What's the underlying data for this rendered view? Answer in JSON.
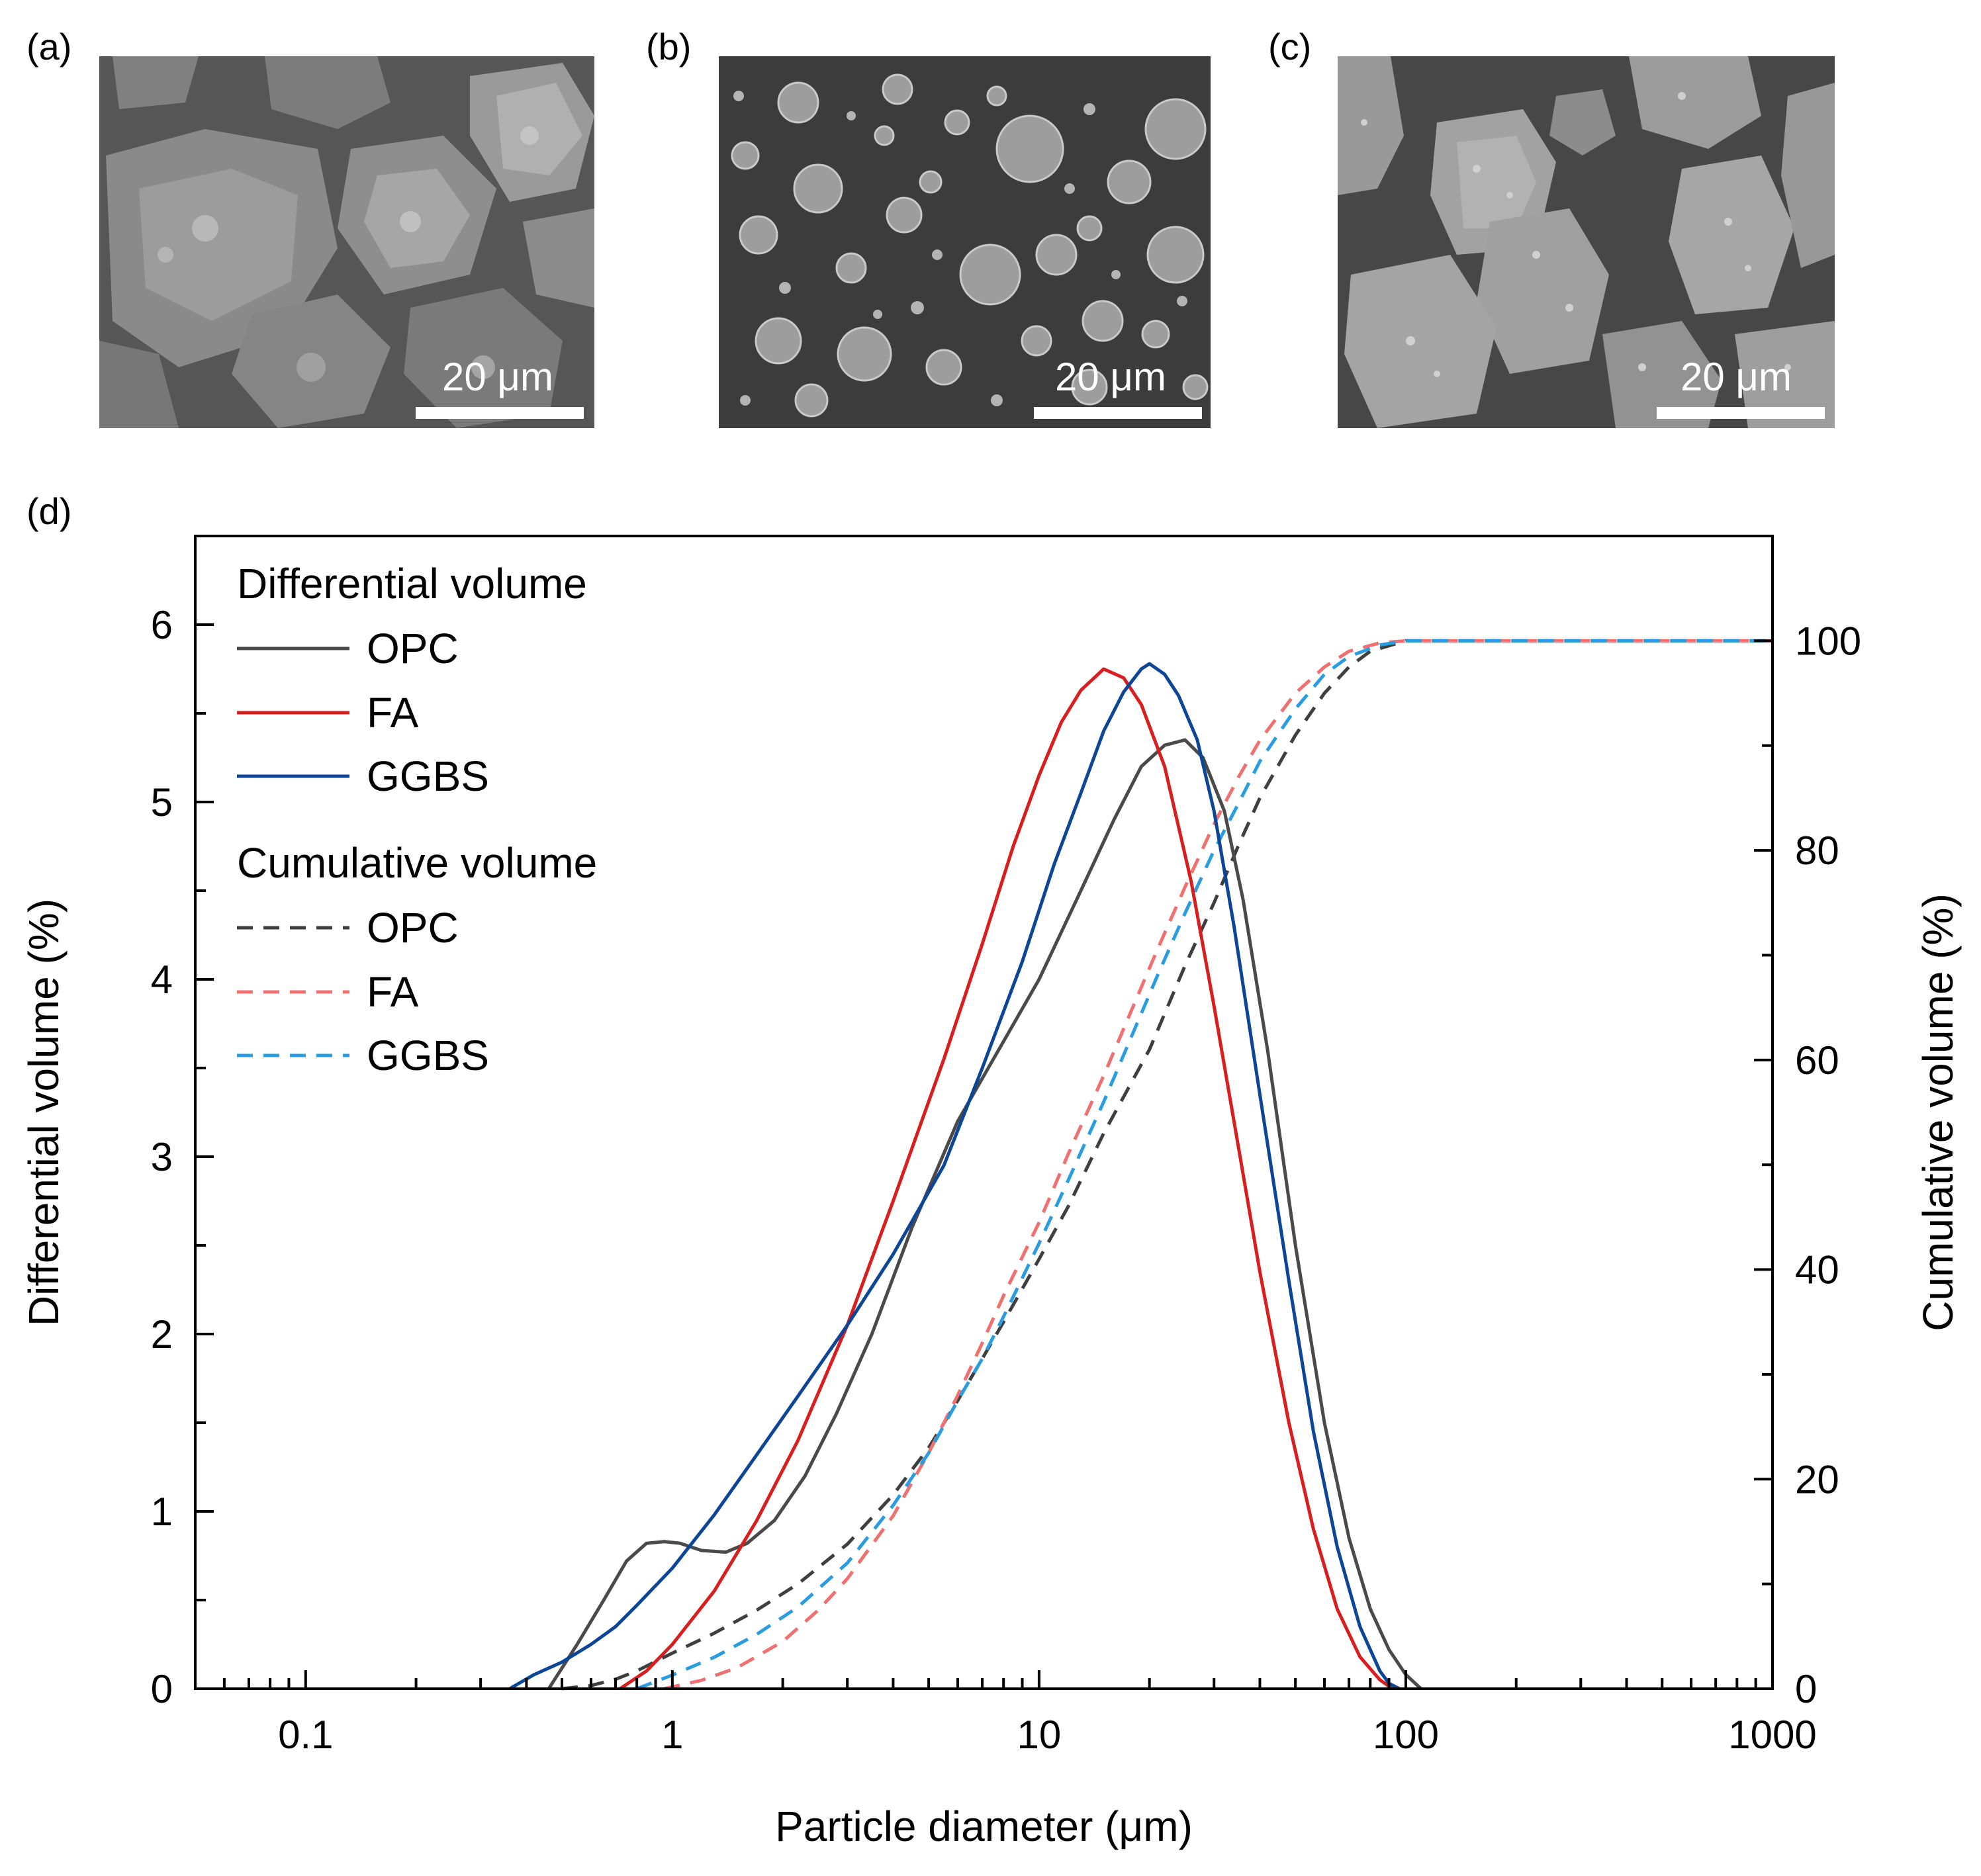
{
  "panels": {
    "a": {
      "label": "(a)",
      "scale_label": "20 μm"
    },
    "b": {
      "label": "(b)",
      "scale_label": "20 μm"
    },
    "c": {
      "label": "(c)",
      "scale_label": "20 μm"
    },
    "d": {
      "label": "(d)"
    }
  },
  "colors": {
    "opc": "#4a4a4a",
    "fa": "#d81e1e",
    "ggbs": "#0d4597",
    "opc_cum": "#3f3f3f",
    "fa_cum": "#f07070",
    "ggbs_cum": "#2a9de0"
  },
  "chart_data": {
    "type": "line",
    "xscale": "log",
    "xlim": [
      0.05,
      1000
    ],
    "ylim_left": [
      0,
      6.5
    ],
    "ylim_right": [
      0,
      110
    ],
    "xlabel": "Particle diameter (μm)",
    "ylabel_left": "Differential volume (%)",
    "ylabel_right": "Cumulative volume (%)",
    "x_ticks": [
      0.1,
      1,
      10,
      100,
      1000
    ],
    "x_tick_labels": [
      "0.1",
      "1",
      "10",
      "100",
      "1000"
    ],
    "y_left_ticks": [
      0,
      1,
      2,
      3,
      4,
      5,
      6
    ],
    "y_left_tick_labels": [
      "0",
      "1",
      "2",
      "3",
      "4",
      "5",
      "6"
    ],
    "y_right_ticks": [
      0,
      20,
      40,
      60,
      80,
      100
    ],
    "y_right_tick_labels": [
      "0",
      "20",
      "40",
      "60",
      "80",
      "100"
    ],
    "legend": {
      "group1_title": "Differential volume",
      "group2_title": "Cumulative volume",
      "entries": [
        "OPC",
        "FA",
        "GGBS",
        "OPC",
        "FA",
        "GGBS"
      ]
    },
    "series": [
      {
        "name": "OPC",
        "group": "differential",
        "axis": "left",
        "style": "solid",
        "x": [
          0.46,
          0.55,
          0.65,
          0.75,
          0.85,
          0.95,
          1.05,
          1.2,
          1.4,
          1.6,
          1.9,
          2.3,
          2.8,
          3.5,
          4.5,
          6,
          8,
          10,
          13,
          16,
          19,
          22,
          25,
          28,
          32,
          36,
          42,
          50,
          60,
          70,
          80,
          90,
          100,
          110
        ],
        "y": [
          0,
          0.25,
          0.5,
          0.72,
          0.82,
          0.83,
          0.82,
          0.78,
          0.77,
          0.82,
          0.95,
          1.2,
          1.55,
          2.0,
          2.6,
          3.2,
          3.65,
          4.0,
          4.5,
          4.9,
          5.2,
          5.32,
          5.35,
          5.25,
          4.95,
          4.45,
          3.6,
          2.5,
          1.5,
          0.85,
          0.45,
          0.22,
          0.08,
          0
        ]
      },
      {
        "name": "FA",
        "group": "differential",
        "axis": "left",
        "style": "solid",
        "x": [
          0.72,
          0.85,
          1,
          1.3,
          1.7,
          2.2,
          3,
          4,
          5.5,
          7,
          8.5,
          10,
          11.5,
          13,
          15,
          17,
          19,
          22,
          26,
          30,
          35,
          40,
          48,
          56,
          65,
          75,
          85,
          92
        ],
        "y": [
          0,
          0.1,
          0.25,
          0.55,
          0.95,
          1.4,
          2.05,
          2.75,
          3.55,
          4.2,
          4.75,
          5.15,
          5.45,
          5.63,
          5.75,
          5.7,
          5.55,
          5.2,
          4.55,
          3.85,
          3.05,
          2.35,
          1.5,
          0.9,
          0.45,
          0.18,
          0.05,
          0
        ]
      },
      {
        "name": "GGBS",
        "group": "differential",
        "axis": "left",
        "style": "solid",
        "x": [
          0.36,
          0.42,
          0.5,
          0.6,
          0.7,
          0.8,
          1,
          1.3,
          1.7,
          2.2,
          3,
          4,
          5.5,
          7,
          9,
          11,
          13,
          15,
          17,
          19,
          20,
          22,
          24,
          27,
          30,
          34,
          40,
          48,
          56,
          65,
          75,
          85,
          90,
          96
        ],
        "y": [
          0,
          0.08,
          0.15,
          0.25,
          0.35,
          0.47,
          0.68,
          0.98,
          1.32,
          1.65,
          2.05,
          2.45,
          2.95,
          3.5,
          4.1,
          4.65,
          5.05,
          5.4,
          5.62,
          5.75,
          5.78,
          5.72,
          5.6,
          5.35,
          4.95,
          4.3,
          3.35,
          2.3,
          1.45,
          0.8,
          0.35,
          0.1,
          0.03,
          0
        ]
      },
      {
        "name": "OPC",
        "group": "cumulative",
        "axis": "right",
        "style": "dashed",
        "x": [
          0.5,
          0.6,
          0.7,
          0.8,
          1,
          1.3,
          1.7,
          2.2,
          3,
          4,
          5,
          6,
          7,
          8,
          10,
          12,
          15,
          20,
          25,
          30,
          35,
          40,
          50,
          60,
          70,
          80,
          100,
          200,
          1000
        ],
        "y": [
          0,
          0.3,
          0.9,
          1.7,
          3.4,
          5.3,
          7.5,
          10,
          13.8,
          18.5,
          23,
          27.5,
          31.5,
          35,
          41,
          46,
          53,
          61,
          69,
          75,
          80.5,
          85,
          91,
          95,
          97.5,
          99,
          100,
          100,
          100
        ]
      },
      {
        "name": "FA",
        "group": "cumulative",
        "axis": "right",
        "style": "dashed",
        "x": [
          0.95,
          1.2,
          1.5,
          2,
          2.5,
          3,
          4,
          5,
          6,
          7,
          8,
          10,
          12,
          15,
          18,
          21,
          25,
          30,
          35,
          40,
          50,
          60,
          70,
          85,
          100,
          200,
          1000
        ],
        "y": [
          0,
          0.8,
          2,
          4.5,
          7.5,
          10.5,
          16.5,
          22.5,
          28,
          33,
          37.5,
          44.5,
          51,
          58.5,
          65,
          70.5,
          76.5,
          82.5,
          87,
          90.5,
          95,
          97.5,
          99,
          99.8,
          100,
          100,
          100
        ]
      },
      {
        "name": "GGBS",
        "group": "cumulative",
        "axis": "right",
        "style": "dashed",
        "x": [
          0.8,
          1,
          1.3,
          1.7,
          2.2,
          3,
          4,
          5,
          6,
          7,
          8,
          10,
          12,
          15,
          18,
          21,
          25,
          30,
          35,
          40,
          50,
          60,
          70,
          85,
          100,
          200,
          1000
        ],
        "y": [
          0,
          1.3,
          3,
          5.2,
          7.8,
          12,
          17.5,
          22.5,
          27.5,
          31.5,
          35.5,
          42.5,
          48.5,
          56,
          62.5,
          68,
          74,
          80,
          84.5,
          88.5,
          93.5,
          96.8,
          98.5,
          99.6,
          100,
          100,
          100
        ]
      }
    ]
  }
}
